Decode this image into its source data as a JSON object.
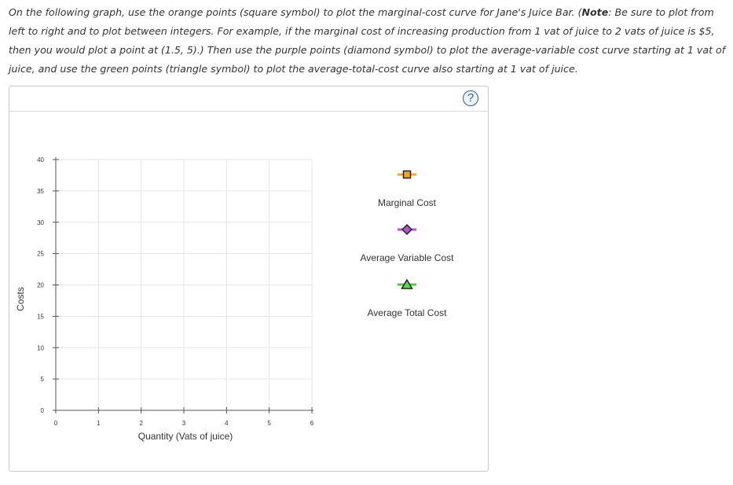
{
  "instructions": {
    "part1": "On the following graph, use the orange points (square symbol) to plot the marginal-cost curve for Jane's Juice Bar. (",
    "note_label": "Note",
    "part2": ": Be sure to plot from left to right and to plot between integers. For example, if the marginal cost of increasing production from 1 vat of juice to 2 vats of juice is $5, then you would plot a point at (1.5, 5).) Then use the purple points (diamond symbol) to plot the average-variable cost curve starting at 1 vat of juice, and use the green points (triangle symbol) to plot the average-total-cost curve also starting at 1 vat of juice."
  },
  "help_label": "?",
  "legend": [
    {
      "name": "Marginal Cost",
      "symbol": "square",
      "color": "#f5a623",
      "fill": "#f5a623"
    },
    {
      "name": "Average Variable Cost",
      "symbol": "diamond",
      "color": "#c34fd6",
      "fill": "#b44fc9"
    },
    {
      "name": "Average Total Cost",
      "symbol": "triangle",
      "color": "#4fcc3c",
      "fill": "#5dd84a"
    }
  ],
  "chart_data": {
    "type": "scatter",
    "xlabel": "Quantity (Vats of juice)",
    "ylabel": "Costs",
    "xlim": [
      0,
      6
    ],
    "ylim": [
      0,
      40
    ],
    "x_ticks": [
      0,
      1,
      2,
      3,
      4,
      5,
      6
    ],
    "y_ticks": [
      0,
      5,
      10,
      15,
      20,
      25,
      30,
      35,
      40
    ],
    "grid": true,
    "series": [
      {
        "name": "Marginal Cost",
        "points": []
      },
      {
        "name": "Average Variable Cost",
        "points": []
      },
      {
        "name": "Average Total Cost",
        "points": []
      }
    ]
  }
}
